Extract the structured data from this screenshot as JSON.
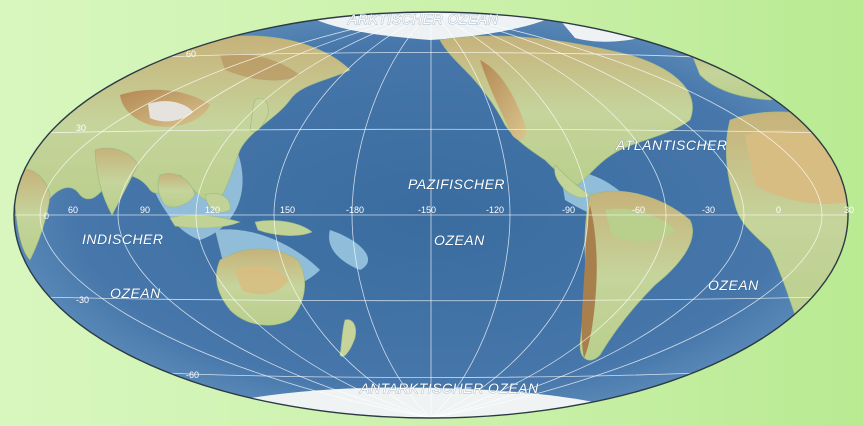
{
  "map": {
    "oceans": {
      "arctic": "ARKTISCHER OZEAN",
      "pacific_1": "PAZIFISCHER",
      "pacific_2": "OZEAN",
      "atlantic_1": "ATLANTISCHER",
      "atlantic_2": "OZEAN",
      "indian_1": "INDISCHER",
      "indian_2": "OZEAN",
      "antarctic_1": "ANTARKTISCHER",
      "antarctic_2": "OZEAN"
    },
    "longitude_labels": [
      "0",
      "60",
      "90",
      "120",
      "150",
      "-180",
      "-150",
      "-120",
      "-90",
      "-60",
      "-30",
      "0",
      "30"
    ],
    "latitude_labels": [
      "60",
      "30",
      "0",
      "-30",
      "-60"
    ],
    "colors": {
      "ocean_deep": "#3d6fa3",
      "ocean_shallow": "#a9d3e8",
      "land_low": "#c8d59a",
      "land_mid": "#d9c384",
      "land_high": "#b98f5a",
      "ice": "#f2f4f5",
      "background": "#c9f0a8"
    }
  }
}
